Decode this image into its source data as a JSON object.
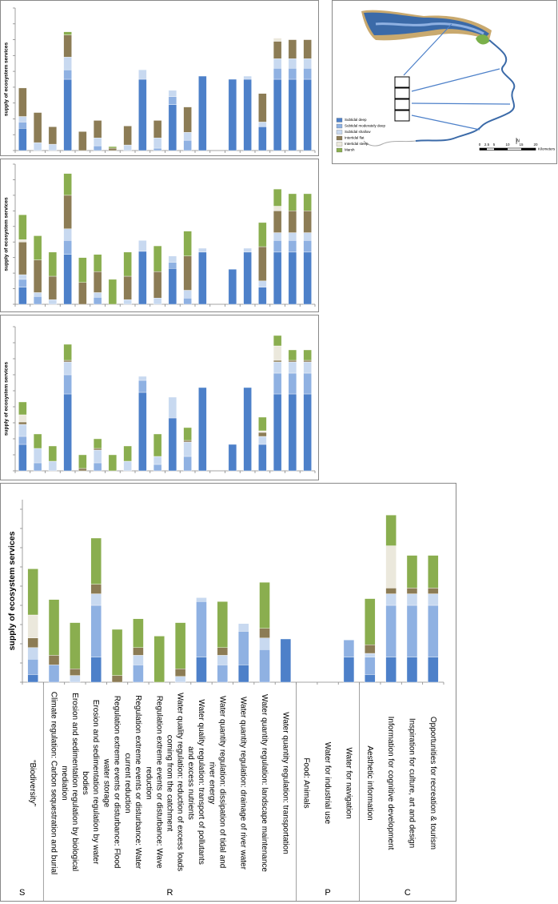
{
  "chart_data": [
    {
      "type": "bar",
      "stacked": true,
      "y_label": "supply of ecosystem services",
      "ylim": [
        0,
        9
      ],
      "yticks": [
        0,
        1,
        2,
        3,
        4,
        5,
        6,
        7,
        8,
        9
      ],
      "series": [
        {
          "name": "Subtidal deep",
          "color": "#4d80c9",
          "values": [
            1.4,
            0,
            0,
            4.5,
            0,
            0,
            0,
            0,
            4.5,
            0,
            2.9,
            0,
            4.7,
            0,
            4.5,
            4.5,
            1.5,
            4.5,
            4.5,
            4.5
          ]
        },
        {
          "name": "Subtidal moderately deep",
          "color": "#8fb1e2",
          "values": [
            0.4,
            0,
            0,
            0.6,
            0,
            0.3,
            0,
            0,
            0,
            0.15,
            0.5,
            0.65,
            0,
            0,
            0,
            0,
            0,
            0.7,
            0.7,
            0.7
          ]
        },
        {
          "name": "Subtidal shallow",
          "color": "#c8d9f0",
          "values": [
            0.35,
            0.5,
            0.4,
            0.8,
            0,
            0.5,
            0,
            0.35,
            0.6,
            0.65,
            0.4,
            0.5,
            0,
            0,
            0,
            0.2,
            0.3,
            0.6,
            0.6,
            0.6
          ]
        },
        {
          "name": "Intertidal flat",
          "color": "#8c7c55",
          "values": [
            1.8,
            1.9,
            1.1,
            1.4,
            1.2,
            1.1,
            0.15,
            1.2,
            0,
            1.1,
            0,
            1.6,
            0,
            0,
            0,
            0,
            1.8,
            1.1,
            1.2,
            1.2
          ]
        },
        {
          "name": "Intertidal steep",
          "color": "#ebe8dc",
          "values": [
            0,
            0,
            0,
            0,
            0,
            0,
            0,
            0,
            0,
            0,
            0,
            0,
            0,
            0,
            0,
            0,
            0,
            0.2,
            0,
            0
          ]
        },
        {
          "name": "Marsh",
          "color": "#8aae4f",
          "values": [
            0,
            0,
            0,
            0.2,
            0,
            0,
            0.1,
            0,
            0,
            0,
            0,
            0,
            0,
            0,
            0,
            0,
            0,
            0,
            0,
            0
          ]
        }
      ]
    },
    {
      "type": "bar",
      "stacked": true,
      "y_label": "supply of ecosystem services",
      "ylim": [
        0,
        9
      ],
      "yticks": [
        0,
        1,
        2,
        3,
        4,
        5,
        6,
        7,
        8,
        9
      ],
      "series": [
        {
          "color": "#4d80c9",
          "values": [
            1.1,
            0,
            0,
            3.2,
            0,
            0,
            0,
            0,
            3.4,
            0,
            2.3,
            0,
            3.35,
            0,
            2.25,
            3.35,
            1.1,
            3.35,
            3.35,
            3.35
          ]
        },
        {
          "color": "#8fb1e2",
          "values": [
            0.5,
            0.5,
            0,
            0.9,
            0,
            0.45,
            0,
            0,
            0,
            0,
            0.4,
            0.4,
            0,
            0,
            0,
            0,
            0,
            0.75,
            0.75,
            0.75
          ]
        },
        {
          "color": "#c8d9f0",
          "values": [
            0.3,
            0.25,
            0.3,
            0.75,
            0,
            0.3,
            0,
            0.3,
            0.7,
            0.4,
            0.4,
            0.5,
            0.25,
            0,
            0,
            0.25,
            0.4,
            0.5,
            0.5,
            0.5
          ]
        },
        {
          "color": "#8c7c55",
          "values": [
            2.1,
            2.1,
            1.5,
            2.15,
            1.4,
            1.35,
            0,
            1.5,
            0,
            1.7,
            0,
            2.2,
            0,
            0,
            0,
            0,
            2.2,
            1.4,
            1.4,
            1.4
          ]
        },
        {
          "color": "#ebe8dc",
          "values": [
            0.15,
            0,
            0,
            0,
            0,
            0,
            0,
            0,
            0,
            0,
            0,
            0,
            0,
            0,
            0,
            0,
            0,
            0.3,
            0,
            0
          ]
        },
        {
          "color": "#8aae4f",
          "values": [
            1.6,
            1.55,
            1.55,
            1.4,
            1.6,
            1.1,
            1.6,
            1.55,
            0,
            1.65,
            0,
            1.6,
            0,
            0,
            0,
            0,
            1.55,
            1.1,
            1.1,
            1.1
          ]
        }
      ]
    },
    {
      "type": "bar",
      "stacked": true,
      "y_label": "supply of ecosystem services",
      "ylim": [
        0,
        9
      ],
      "yticks": [
        0,
        1,
        2,
        3,
        4,
        5,
        6,
        7,
        8,
        9
      ],
      "series": [
        {
          "color": "#4d80c9",
          "values": [
            1.65,
            0,
            0,
            4.8,
            0,
            0,
            0,
            0,
            4.9,
            0,
            3.3,
            0,
            5.2,
            0,
            1.65,
            5.2,
            1.65,
            4.8,
            4.8,
            4.8
          ]
        },
        {
          "color": "#8fb1e2",
          "values": [
            0.5,
            0.5,
            0,
            1.2,
            0,
            0.5,
            0,
            0,
            0.75,
            0.4,
            0,
            0.9,
            0,
            0,
            0,
            0,
            0,
            1.3,
            1.3,
            1.3
          ]
        },
        {
          "color": "#c8d9f0",
          "values": [
            0.75,
            0.9,
            0.6,
            0.8,
            0,
            0.8,
            0,
            0.6,
            0.25,
            0.5,
            1.3,
            0.9,
            0,
            0,
            0,
            0,
            0.5,
            0.7,
            0.7,
            0.7
          ]
        },
        {
          "color": "#8c7c55",
          "values": [
            0.15,
            0,
            0,
            0.1,
            0.15,
            0.1,
            0,
            0,
            0,
            0,
            0,
            0.1,
            0,
            0,
            0,
            0,
            0.25,
            0.1,
            0.1,
            0.1
          ]
        },
        {
          "color": "#ebe8dc",
          "values": [
            0.45,
            0,
            0,
            0,
            0,
            0,
            0,
            0,
            0,
            0,
            0,
            0,
            0,
            0,
            0,
            0,
            0.1,
            0.9,
            0,
            0
          ]
        },
        {
          "color": "#8aae4f",
          "values": [
            0.8,
            0.9,
            0.95,
            1.0,
            0.85,
            0.6,
            1.0,
            0.95,
            0,
            1.4,
            0,
            0.8,
            0,
            0,
            0,
            0,
            0.85,
            0.65,
            0.65,
            0.65
          ]
        }
      ]
    },
    {
      "type": "bar",
      "stacked": true,
      "y_label": "supply of ecosystem services",
      "ylim": [
        0,
        9.5
      ],
      "yticks": [
        0,
        1,
        2,
        3,
        4,
        5,
        6,
        7,
        8,
        9
      ],
      "categories": [
        "“Biodiversity”",
        "Climate regulation: Carbon sequestration and burial",
        "Erosion and sedimentation regulation by biological mediation",
        "Erosion and sedimentation regulation by water bodies",
        "Regulation extreme events or disturbance: Flood water storage",
        "Regulation extreme events or disturbance: Water current reduction",
        "Regulation extreme events or disturbance: Wave reduction",
        "Water quality regulation: reduction of excess loads coming from the catchment",
        "Water quality regulation: transport of pollutants and excess nutrients",
        "Water quantity regulation: dissipation of tidal and river energy",
        "Water quantity regulation: drainage of river water",
        "Water quantity regulation: landscape maintenance",
        "Water quantity regulation: transportation",
        "Food: Animals",
        "Water for industrial use",
        "Water for navigation",
        "Aesthetic information",
        "Information for cognitive development",
        "Inspiration for culture, art and design",
        "Opportunities for recreation & tourism"
      ],
      "groups": [
        {
          "label": "S",
          "count": 1
        },
        {
          "label": "R",
          "count": 12
        },
        {
          "label": "P",
          "count": 3
        },
        {
          "label": "C",
          "count": 4
        }
      ],
      "series": [
        {
          "color": "#4d80c9",
          "values": [
            0.4,
            0,
            0,
            1.3,
            0,
            0,
            0,
            0,
            1.3,
            0,
            0.9,
            0,
            2.25,
            0,
            0,
            1.3,
            0.4,
            1.3,
            1.3,
            1.3
          ]
        },
        {
          "color": "#8fb1e2",
          "values": [
            0.8,
            0.9,
            0,
            2.7,
            0,
            0.9,
            0,
            0,
            2.9,
            0.9,
            1.75,
            1.7,
            0,
            0,
            0,
            0.9,
            0.9,
            2.7,
            2.7,
            2.7
          ]
        },
        {
          "color": "#c8d9f0",
          "values": [
            0.6,
            0,
            0.35,
            0.6,
            0,
            0.5,
            0,
            0.3,
            0.2,
            0.5,
            0.4,
            0.6,
            0,
            0,
            0,
            0,
            0.2,
            0.6,
            0.6,
            0.6
          ]
        },
        {
          "color": "#8c7c55",
          "values": [
            0.5,
            0.5,
            0.35,
            0.5,
            0.35,
            0.4,
            0,
            0.4,
            0,
            0.4,
            0,
            0.5,
            0,
            0,
            0,
            0,
            0.45,
            0.3,
            0.3,
            0.3
          ]
        },
        {
          "color": "#ebe8dc",
          "values": [
            1.2,
            0,
            0,
            0,
            0,
            0,
            0,
            0,
            0,
            0,
            0,
            0,
            0,
            0,
            0,
            0,
            0,
            2.2,
            0,
            0
          ]
        },
        {
          "color": "#8aae4f",
          "values": [
            2.4,
            2.9,
            2.4,
            2.4,
            2.4,
            1.5,
            2.4,
            2.4,
            0,
            2.4,
            0,
            2.4,
            0,
            0,
            0,
            0,
            2.4,
            1.6,
            1.7,
            1.7
          ]
        }
      ]
    }
  ],
  "map": {
    "scale_labels": [
      "0",
      "2.5",
      "5",
      "10",
      "15",
      "20"
    ],
    "unit": "Kilometers",
    "north": "N"
  }
}
